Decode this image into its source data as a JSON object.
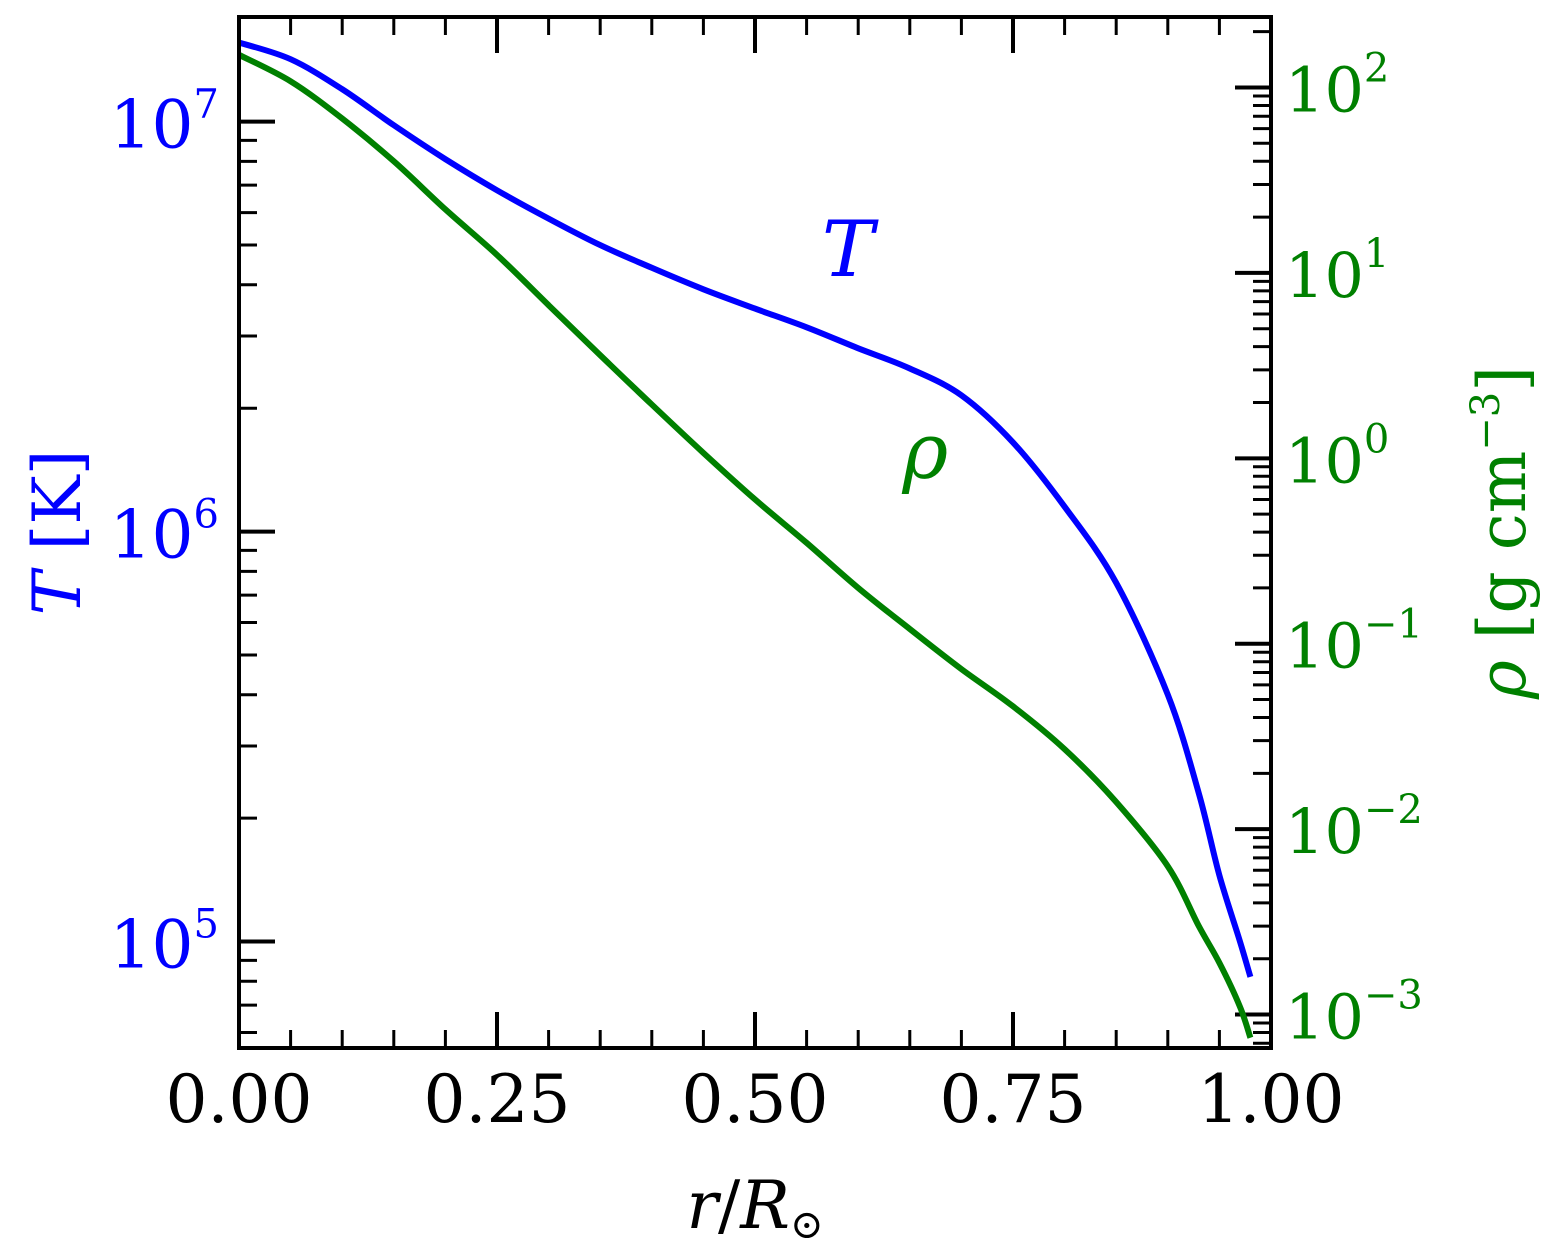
{
  "chart_data": {
    "type": "line",
    "x_axis": {
      "label_var": "r",
      "label_sep": "/",
      "label_unit": "R",
      "label_unit_sub": "⊙",
      "range": [
        0,
        1
      ],
      "ticks": [
        0,
        0.25,
        0.5,
        0.75,
        1.0
      ],
      "tick_labels": [
        "0.00",
        "0.25",
        "0.50",
        "0.75",
        "1.00"
      ]
    },
    "left_axis": {
      "label_var": "T",
      "label_unit": " [K]",
      "scale": "log",
      "range": [
        55000,
        18000000
      ],
      "ticks": [
        100000,
        1000000,
        10000000
      ],
      "tick_labels": [
        {
          "base": "10",
          "exp": "5"
        },
        {
          "base": "10",
          "exp": "6"
        },
        {
          "base": "10",
          "exp": "7"
        }
      ],
      "color": "#0000ff"
    },
    "right_axis": {
      "label_var": "ρ",
      "label_unit": " [g cm",
      "label_exp": "−3",
      "label_close": "]",
      "scale": "log",
      "range": [
        0.00066,
        240
      ],
      "ticks": [
        0.001,
        0.01,
        0.1,
        1,
        10,
        100
      ],
      "tick_labels": [
        {
          "base": "10",
          "exp": "−3"
        },
        {
          "base": "10",
          "exp": "−2"
        },
        {
          "base": "10",
          "exp": "−1"
        },
        {
          "base": "10",
          "exp": "0"
        },
        {
          "base": "10",
          "exp": "1"
        },
        {
          "base": "10",
          "exp": "2"
        }
      ],
      "color": "#008000"
    },
    "series": [
      {
        "name": "T",
        "axis": "left",
        "color": "#0000ff",
        "x": [
          0.0,
          0.05,
          0.1,
          0.15,
          0.2,
          0.25,
          0.3,
          0.35,
          0.4,
          0.45,
          0.5,
          0.55,
          0.6,
          0.65,
          0.7,
          0.75,
          0.8,
          0.85,
          0.9,
          0.93,
          0.95,
          0.97,
          0.98
        ],
        "y": [
          15600000,
          14200000,
          12000000,
          9800000,
          8100000,
          6800000,
          5800000,
          5000000,
          4400000,
          3900000,
          3500000,
          3150000,
          2800000,
          2500000,
          2150000,
          1650000,
          1150000,
          750000,
          400000,
          230000,
          145000,
          100000,
          82000
        ]
      },
      {
        "name": "ρ",
        "axis": "right",
        "color": "#008000",
        "x": [
          0.0,
          0.05,
          0.1,
          0.15,
          0.2,
          0.25,
          0.3,
          0.35,
          0.4,
          0.45,
          0.5,
          0.55,
          0.6,
          0.65,
          0.7,
          0.75,
          0.8,
          0.85,
          0.9,
          0.93,
          0.95,
          0.97,
          0.98
        ],
        "y": [
          150,
          108,
          68,
          40,
          22,
          12.5,
          6.7,
          3.6,
          1.95,
          1.07,
          0.6,
          0.35,
          0.2,
          0.12,
          0.073,
          0.046,
          0.027,
          0.014,
          0.0063,
          0.003,
          0.0019,
          0.0011,
          0.00075
        ]
      }
    ],
    "annotations": [
      {
        "text": "T",
        "x": 0.59,
        "y_axis": "left",
        "y": 4200000,
        "color": "#0000ff"
      },
      {
        "text": "ρ",
        "x": 0.665,
        "y_axis": "left",
        "y": 1350000,
        "color": "#008000"
      }
    ],
    "grid": false
  }
}
